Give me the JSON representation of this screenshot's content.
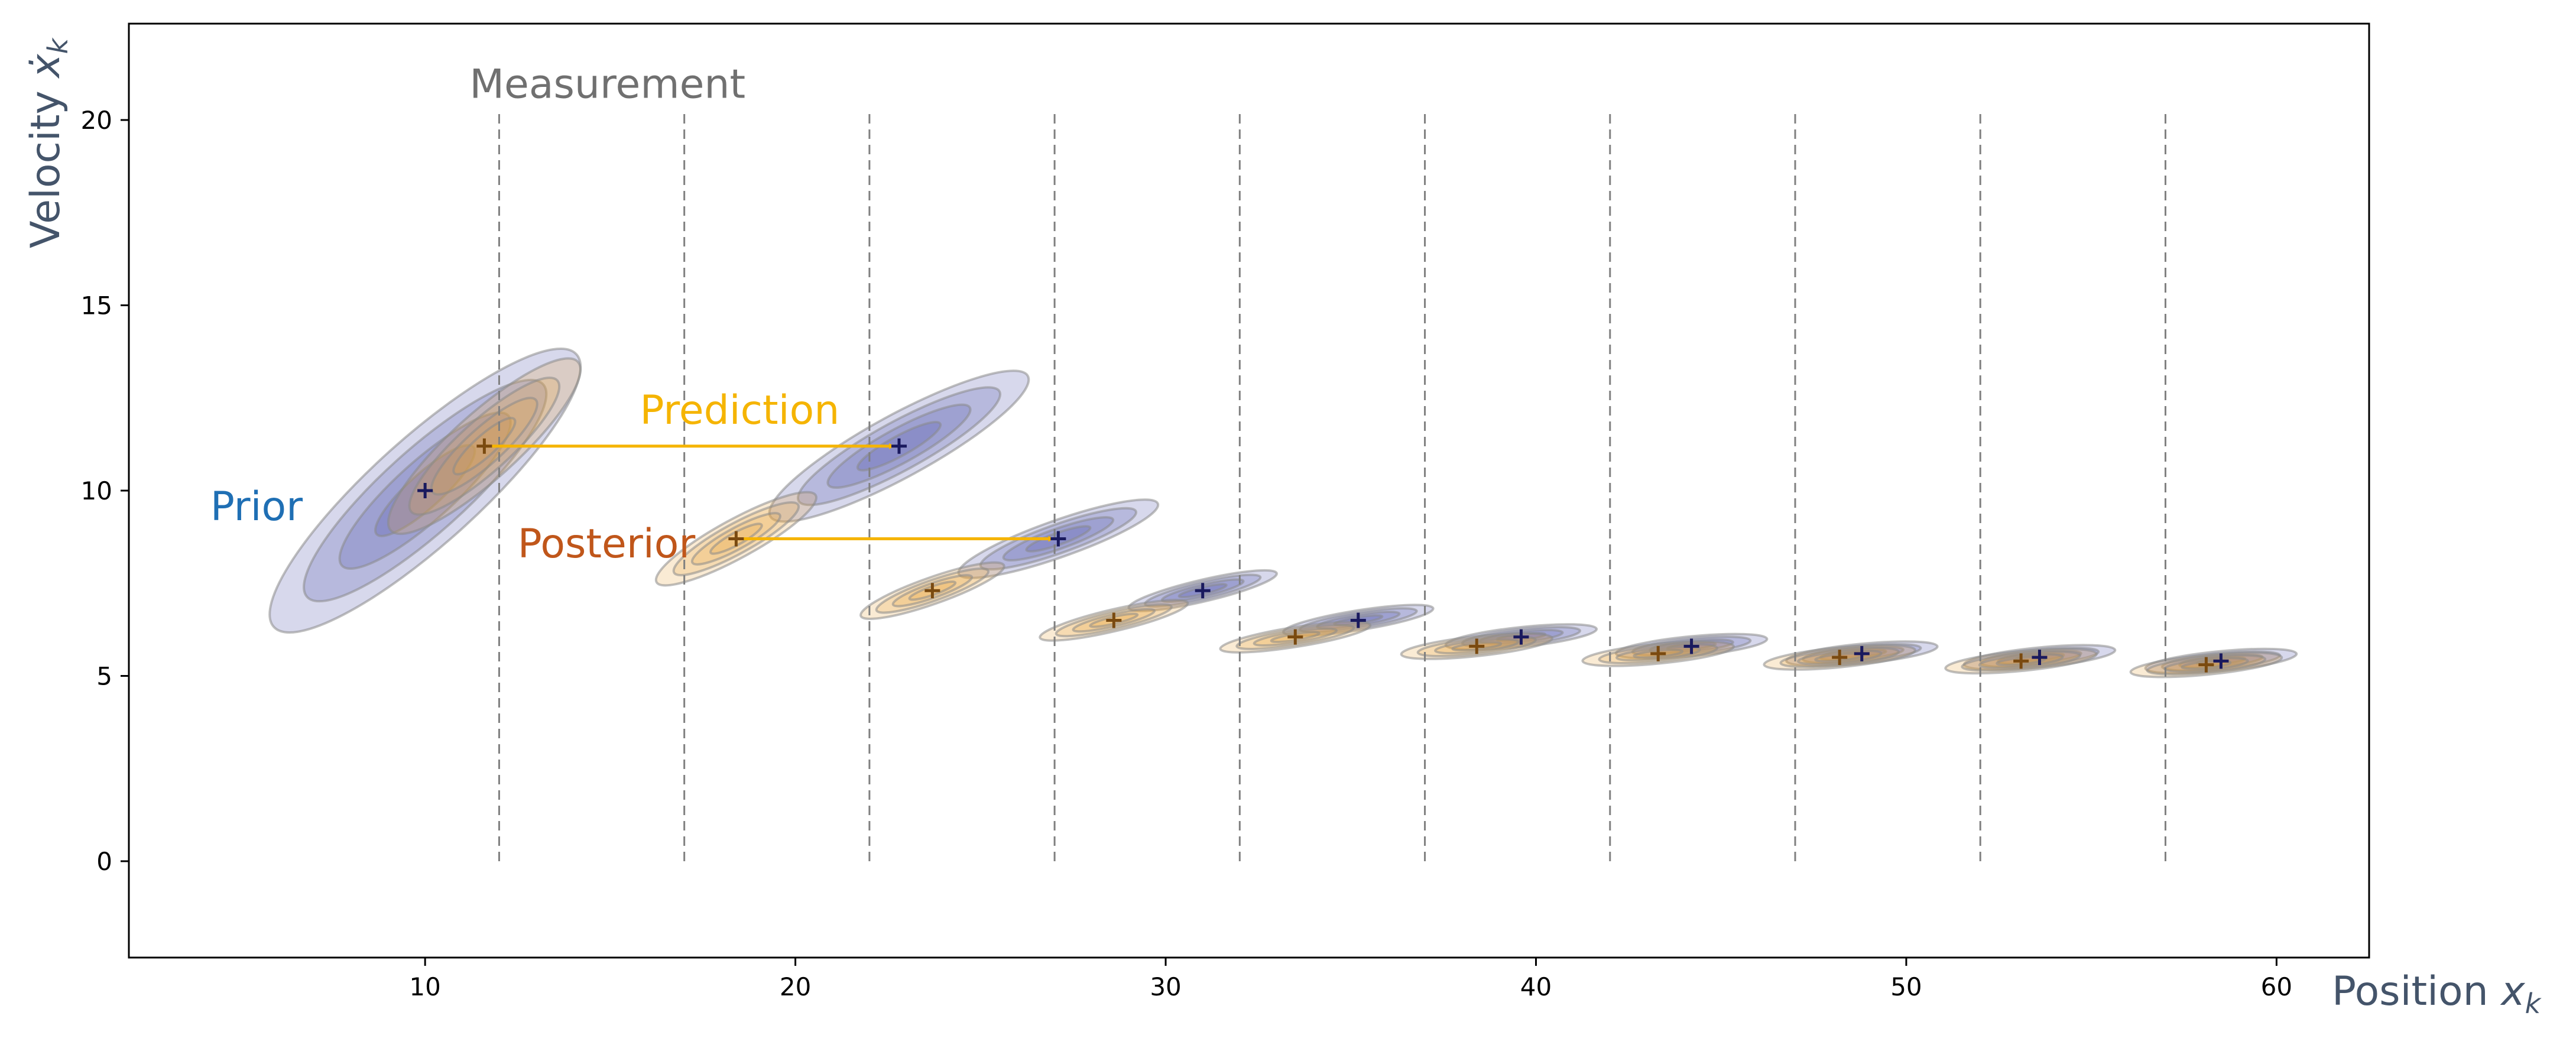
{
  "chart_data": {
    "type": "scatter",
    "title": "",
    "xlabel": "Position x_k",
    "ylabel": "Velocity ẋ_k",
    "xlabel_parts": {
      "base": "Position ",
      "var": "x",
      "sub": "k"
    },
    "ylabel_parts": {
      "base": "Velocity ",
      "var": "ẋ",
      "sub": "k"
    },
    "xlim": [
      2,
      62.5
    ],
    "ylim": [
      -2.6,
      22.6
    ],
    "xticks": [
      10,
      20,
      30,
      40,
      50,
      60
    ],
    "yticks": [
      0,
      5,
      10,
      15,
      20
    ],
    "grid": false,
    "measurement_positions": [
      12,
      17,
      22,
      27,
      32,
      37,
      42,
      47,
      52,
      57
    ],
    "measurement_ymax": 20.3,
    "series": [
      {
        "name": "Prior",
        "color": "#4b4fa8",
        "marker_color": "#1a1a5e",
        "points": [
          [
            10.0,
            10.0
          ],
          [
            22.8,
            11.2
          ],
          [
            27.1,
            8.7
          ],
          [
            31.0,
            7.3
          ],
          [
            35.2,
            6.5
          ],
          [
            39.6,
            6.05
          ],
          [
            44.2,
            5.8
          ],
          [
            48.8,
            5.6
          ],
          [
            53.6,
            5.5
          ],
          [
            58.5,
            5.4
          ]
        ]
      },
      {
        "name": "Posterior",
        "color": "#e8a43a",
        "marker_color": "#7a4a10",
        "points": [
          [
            11.6,
            11.2
          ],
          [
            18.4,
            8.7
          ],
          [
            23.7,
            7.3
          ],
          [
            28.6,
            6.5
          ],
          [
            33.5,
            6.05
          ],
          [
            38.4,
            5.8
          ],
          [
            43.3,
            5.6
          ],
          [
            48.2,
            5.5
          ],
          [
            53.1,
            5.4
          ],
          [
            58.1,
            5.3
          ]
        ]
      }
    ],
    "annotations": {
      "measurement": {
        "text": "Measurement",
        "x": 11.2,
        "y": 20.6,
        "color": "#707070"
      },
      "prior": {
        "text": "Prior",
        "x": 4.2,
        "y": 9.2,
        "color": "#1f6fb4"
      },
      "posterior": {
        "text": "Posterior",
        "x": 12.5,
        "y": 8.2,
        "color": "#c0561a"
      },
      "prediction": {
        "text": "Prediction",
        "x": 15.8,
        "y": 11.8,
        "color": "#f5b400"
      }
    },
    "prediction_arrows": [
      {
        "from": [
          11.6,
          11.2
        ],
        "to": [
          22.8,
          11.2
        ]
      },
      {
        "from": [
          18.4,
          8.7
        ],
        "to": [
          27.1,
          8.7
        ]
      }
    ],
    "colors": {
      "prediction_arrow": "#f5b400",
      "measurement_line": "#808080",
      "axis_title": "#44546a"
    }
  }
}
